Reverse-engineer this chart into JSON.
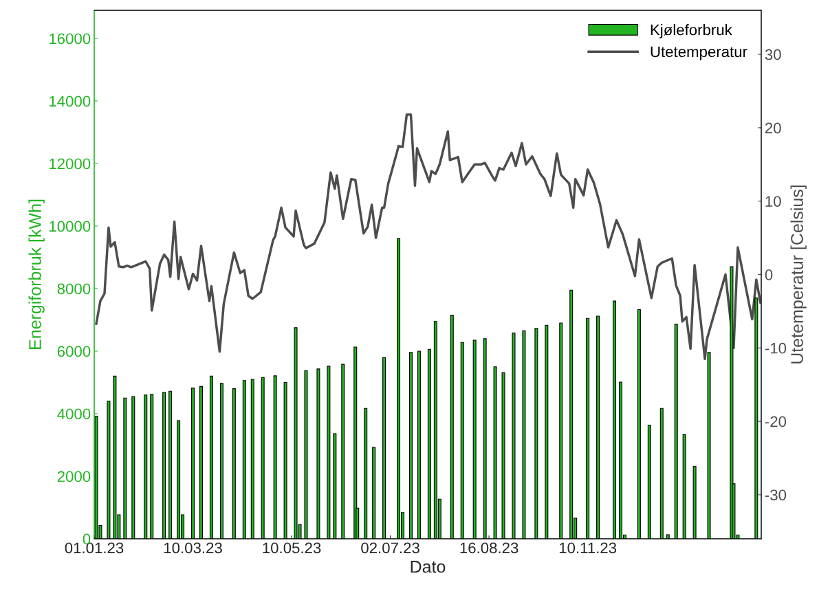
{
  "chart_data": {
    "type": "bar",
    "xlabel": "Dato",
    "ylabel": "Energiforbruk [kWh]",
    "y2label": "Utetemperatur [Celsius]",
    "categories": [
      "01.01.23",
      null,
      null,
      null,
      null,
      null,
      null,
      null,
      null,
      null,
      null,
      null,
      null,
      null,
      null,
      null,
      null,
      null,
      null,
      null,
      null,
      null,
      null,
      null,
      null,
      null,
      null,
      null,
      null,
      null,
      null,
      null,
      null,
      null,
      null,
      null,
      null,
      null,
      null,
      null,
      null,
      null,
      null,
      null,
      null,
      null,
      null,
      null,
      "10.03.23",
      null,
      null,
      null,
      null,
      null,
      null,
      null,
      null,
      null,
      null,
      null,
      null,
      null,
      null,
      null,
      null,
      null,
      null,
      null,
      null,
      null,
      null,
      null,
      null,
      null,
      null,
      null,
      null,
      null,
      null,
      null,
      null,
      null,
      null,
      null,
      null,
      null,
      null,
      null,
      null,
      null,
      null,
      null,
      null,
      null,
      null,
      null,
      "10.05.23",
      null,
      null,
      null,
      null,
      null,
      null,
      null,
      null,
      null,
      null,
      null,
      null,
      null,
      null,
      null,
      null,
      null,
      null,
      null,
      null,
      null,
      null,
      null,
      null,
      null,
      null,
      null,
      null,
      null,
      null,
      null,
      null,
      null,
      null,
      null,
      null,
      null,
      null,
      null,
      null,
      null,
      null,
      null,
      null,
      null,
      null,
      null,
      "02.07.23",
      null,
      null,
      null,
      null,
      null,
      null,
      null,
      null,
      null,
      null,
      null,
      null,
      null,
      null,
      null,
      null,
      null,
      null,
      null,
      null,
      null,
      null,
      null,
      null,
      null,
      null,
      null,
      null,
      null,
      null,
      null,
      null,
      null,
      null,
      null,
      null,
      null,
      null,
      null,
      null,
      null,
      null,
      null,
      null,
      null,
      null,
      null,
      "16.08.23",
      null,
      null,
      null,
      null,
      null,
      null,
      null,
      null,
      null,
      null,
      null,
      null,
      null,
      null,
      null,
      null,
      null,
      null,
      null,
      null,
      null,
      null,
      null,
      null,
      null,
      null,
      null,
      null,
      null,
      null,
      null,
      null,
      null,
      null,
      null,
      null,
      null,
      null,
      null,
      null,
      null,
      null,
      null,
      null,
      null,
      null,
      null,
      "10.11.23",
      null,
      null,
      null,
      null,
      null,
      null,
      null,
      null,
      null,
      null,
      null,
      null,
      null,
      null,
      null,
      null,
      null,
      null,
      null,
      null,
      null,
      null,
      null,
      null,
      null,
      null,
      null,
      null,
      null,
      null,
      null,
      null,
      null,
      null,
      null,
      null,
      null,
      null,
      null,
      null,
      null,
      null,
      null,
      null,
      null,
      null,
      null,
      null,
      null,
      null,
      null,
      null,
      null,
      null,
      null,
      null,
      null,
      null,
      null,
      null,
      null,
      null,
      null,
      null,
      null,
      null,
      null,
      null,
      null,
      null,
      null,
      null,
      null,
      null,
      null,
      null,
      null,
      null,
      null,
      null,
      null,
      null,
      null,
      null
    ],
    "ylim": [
      0,
      16900
    ],
    "yticks": [
      0,
      2000,
      4000,
      6000,
      8000,
      10000,
      12000,
      14000,
      16000
    ],
    "y2lim": [
      -36,
      36
    ],
    "y2ticks": [
      -30,
      -20,
      -10,
      0,
      10,
      20,
      30
    ],
    "legend": "top right",
    "series": [
      {
        "name": "Kjøleforbruk",
        "color": "#22b422",
        "values": [
          null,
          3920,
          null,
          430,
          null,
          null,
          null,
          4400,
          null,
          null,
          5200,
          null,
          770,
          null,
          null,
          4500,
          null,
          null,
          null,
          4550,
          null,
          null,
          null,
          null,
          null,
          4600,
          null,
          null,
          4620,
          null,
          null,
          null,
          null,
          null,
          4680,
          null,
          null,
          4720,
          null,
          null,
          null,
          3780,
          null,
          770,
          null,
          null,
          null,
          null,
          4820,
          null,
          null,
          null,
          4870,
          null,
          null,
          null,
          null,
          5200,
          null,
          null,
          null,
          null,
          4970,
          null,
          null,
          null,
          null,
          null,
          4800,
          null,
          null,
          null,
          null,
          5060,
          null,
          null,
          null,
          5100,
          null,
          null,
          null,
          null,
          5160,
          null,
          null,
          null,
          null,
          null,
          5210,
          null,
          null,
          null,
          null,
          5000,
          null,
          null,
          null,
          null,
          6750,
          null,
          450,
          null,
          null,
          5380,
          null,
          null,
          null,
          null,
          null,
          5430,
          null,
          null,
          null,
          null,
          5520,
          null,
          null,
          3360,
          null,
          null,
          null,
          5580,
          null,
          null,
          null,
          null,
          null,
          6130,
          980,
          null,
          null,
          null,
          4170,
          null,
          null,
          null,
          2920,
          null,
          null,
          null,
          null,
          5790,
          null,
          null,
          null,
          null,
          null,
          null,
          9600,
          null,
          840,
          null,
          null,
          null,
          5960,
          null,
          null,
          null,
          6000,
          null,
          null,
          null,
          null,
          6060,
          null,
          null,
          6950,
          null,
          1270,
          null,
          null,
          null,
          null,
          null,
          7150,
          null,
          null,
          null,
          null,
          6280,
          null,
          null,
          null,
          null,
          null,
          6350,
          null,
          null,
          null,
          null,
          6400,
          null,
          null,
          null,
          null,
          5500,
          null,
          null,
          null,
          5310,
          null,
          null,
          null,
          null,
          6580,
          null,
          null,
          null,
          null,
          6650,
          null,
          null,
          null,
          null,
          null,
          6730,
          null,
          null,
          null,
          null,
          6830,
          null,
          null,
          null,
          null,
          null,
          null,
          6900,
          null,
          null,
          null,
          null,
          7950,
          null,
          660,
          null,
          null,
          null,
          null,
          null,
          7050,
          null,
          null,
          null,
          null,
          7120,
          null,
          null,
          null,
          null,
          null,
          null,
          null,
          7600,
          null,
          null,
          5010,
          null,
          120,
          null,
          null,
          null,
          null,
          null,
          null,
          7330,
          null,
          null,
          null,
          null,
          3630,
          null,
          null,
          null,
          null,
          null,
          4170,
          null,
          null,
          130,
          null,
          null,
          null,
          6860,
          null,
          null,
          null,
          3330,
          null,
          null,
          null,
          null,
          2320,
          null,
          null,
          null,
          null,
          null,
          null,
          5960,
          null,
          null,
          null,
          null,
          null,
          null,
          null,
          null,
          null,
          null,
          8700,
          1760,
          null,
          120,
          null,
          null,
          null,
          null,
          null,
          null,
          null,
          null,
          7700,
          null,
          null
        ]
      },
      {
        "name": "Utetemperatur",
        "type": "line",
        "axis": "y2",
        "color": "#4d4d4d",
        "values": [
          null,
          -6.7,
          null,
          -3.6,
          null,
          -2.6,
          null,
          6.4,
          3.8,
          null,
          4.4,
          null,
          1.1,
          null,
          1.0,
          null,
          1.2,
          null,
          1.0,
          null,
          null,
          null,
          null,
          null,
          null,
          1.8,
          null,
          0.8,
          -4.9,
          null,
          null,
          null,
          1.5,
          null,
          2.7,
          null,
          2.0,
          -0.3,
          null,
          7.2,
          null,
          -0.6,
          2.4,
          null,
          null,
          null,
          -2.0,
          null,
          0.1,
          null,
          -0.8,
          null,
          3.9,
          null,
          null,
          null,
          -3.6,
          -1.6,
          null,
          null,
          null,
          -10.5,
          null,
          -4.0,
          null,
          null,
          null,
          null,
          3.0,
          null,
          null,
          0.2,
          null,
          0.6,
          null,
          -2.9,
          null,
          -3.3,
          null,
          null,
          null,
          -2.4,
          null,
          null,
          null,
          null,
          null,
          4.7,
          5.2,
          null,
          null,
          9.1,
          null,
          6.4,
          null,
          null,
          null,
          5.2,
          8.7,
          null,
          null,
          null,
          4.0,
          3.6,
          null,
          null,
          null,
          4.2,
          null,
          null,
          null,
          null,
          7.1,
          null,
          null,
          13.9,
          null,
          11.7,
          13.5,
          null,
          null,
          7.6,
          null,
          null,
          null,
          13.0,
          null,
          12.9,
          null,
          null,
          null,
          5.6,
          null,
          6.5,
          null,
          9.5,
          null,
          5.0,
          null,
          null,
          9.1,
          9.1,
          null,
          12.4,
          null,
          null,
          null,
          16.4,
          17.5,
          null,
          17.4,
          null,
          21.8,
          null,
          21.8,
          null,
          12.1,
          17.2,
          null,
          null,
          null,
          null,
          null,
          12.6,
          14.1,
          null,
          13.7,
          null,
          15.0,
          null,
          null,
          null,
          19.5,
          15.6,
          null,
          null,
          null,
          16.0,
          null,
          12.6,
          null,
          null,
          13.8,
          null,
          null,
          15.0,
          null,
          null,
          15.0,
          null,
          15.2,
          null,
          null,
          null,
          13.2,
          12.8,
          null,
          14.5,
          null,
          14.3,
          null,
          null,
          null,
          16.6,
          null,
          14.8,
          null,
          null,
          17.9,
          null,
          15.0,
          null,
          null,
          16.1,
          null,
          null,
          null,
          13.7,
          null,
          13.0,
          null,
          null,
          10.7,
          null,
          null,
          16.5,
          null,
          13.6,
          null,
          null,
          null,
          12.4,
          null,
          9.1,
          13.0,
          null,
          null,
          null,
          10.8,
          null,
          14.3,
          null,
          null,
          12.5,
          null,
          null,
          9.6,
          null,
          null,
          null,
          3.7,
          null,
          null,
          null,
          7.4,
          null,
          null,
          5.5,
          null,
          null,
          null,
          null,
          null,
          -0.2,
          null,
          4.8,
          null,
          null,
          null,
          null,
          null,
          -3.2,
          null,
          null,
          1.1,
          null,
          1.6,
          null,
          null,
          null,
          null,
          2.2,
          null,
          -1.5,
          null,
          -2.9,
          -6.4,
          null,
          -5.8,
          null,
          -10.1,
          null,
          1.3,
          null,
          null,
          null,
          null,
          -11.5,
          -8.8,
          null,
          null,
          null,
          null,
          null,
          null,
          null,
          null,
          0.0,
          null,
          null,
          null,
          -10.0,
          null,
          3.7,
          null,
          null,
          null,
          null,
          null,
          null,
          -6.1,
          null,
          -0.7,
          null,
          -3.8
        ]
      }
    ]
  }
}
